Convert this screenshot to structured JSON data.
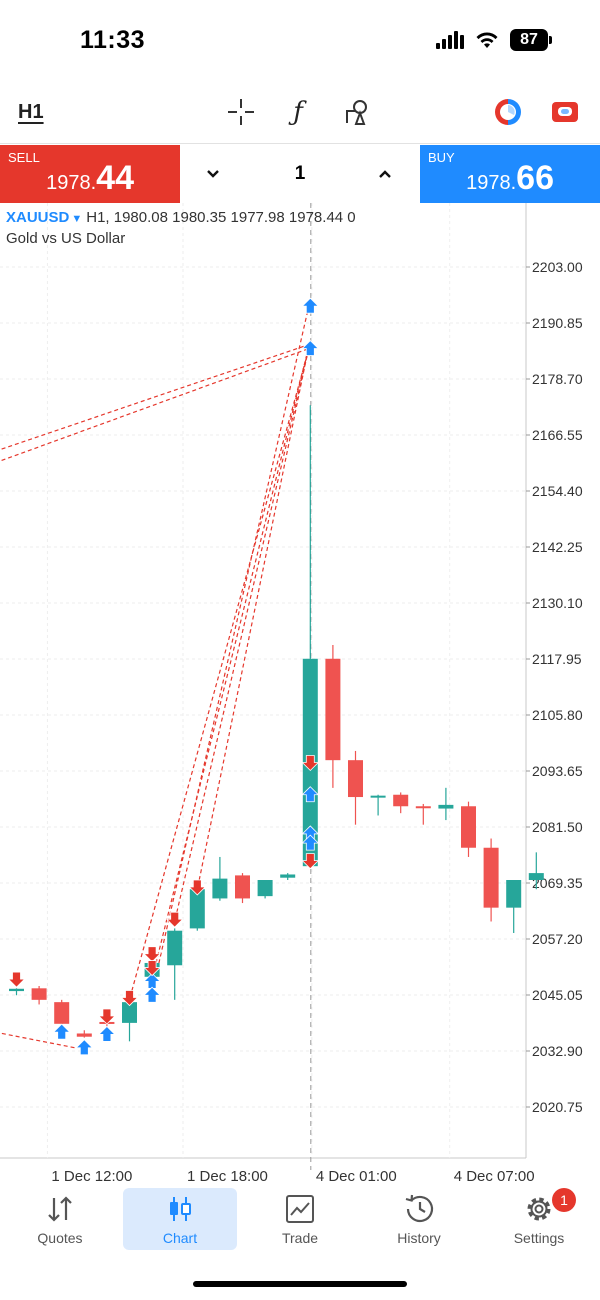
{
  "status_bar": {
    "time": "11:33",
    "battery": "87"
  },
  "toolbar": {
    "timeframe": "H1",
    "icons": [
      "crosshair-icon",
      "function-icon",
      "objects-icon",
      "one-click-trading-icon",
      "account-icon"
    ],
    "function_glyph": "ƒ"
  },
  "trade": {
    "sell_label": "SELL",
    "sell_price_prefix": "1978.",
    "sell_price_big": "44",
    "buy_label": "BUY",
    "buy_price_prefix": "1978.",
    "buy_price_big": "66",
    "lot": "1"
  },
  "chart": {
    "symbol": "XAUUSD",
    "info": "H1, 1980.08 1980.35 1977.98 1978.44 0",
    "description": "Gold vs US Dollar"
  },
  "chart_data": {
    "type": "candlestick",
    "symbol": "XAUUSD",
    "timeframe": "H1",
    "y_ticks": [
      "2203.00",
      "2190.85",
      "2178.70",
      "2166.55",
      "2154.40",
      "2142.25",
      "2130.10",
      "2117.95",
      "2105.80",
      "2093.65",
      "2081.50",
      "2069.35",
      "2057.20",
      "2045.05",
      "2032.90",
      "2020.75"
    ],
    "ylim": [
      2012,
      2206
    ],
    "x_ticks": [
      "1 Dec 12:00",
      "1 Dec 18:00",
      "4 Dec 01:00",
      "4 Dec 07:00"
    ],
    "colors": {
      "bull": "#26a69a",
      "bear": "#ef5350",
      "buy_arrow": "#1f8bff",
      "sell_arrow": "#e5372c"
    },
    "candles": [
      {
        "o": 2045.9,
        "h": 2046.5,
        "l": 2045.0,
        "c": 2046.4
      },
      {
        "o": 2046.5,
        "h": 2047.0,
        "l": 2043.0,
        "c": 2044.0
      },
      {
        "o": 2043.5,
        "h": 2044.0,
        "l": 2037.5,
        "c": 2038.8
      },
      {
        "o": 2036.7,
        "h": 2037.4,
        "l": 2035.8,
        "c": 2036.0
      },
      {
        "o": 2039.2,
        "h": 2040.5,
        "l": 2038.0,
        "c": 2039.0
      },
      {
        "o": 2039.0,
        "h": 2045.5,
        "l": 2035.0,
        "c": 2043.5
      },
      {
        "o": 2049.0,
        "h": 2053.0,
        "l": 2048.0,
        "c": 2052.0
      },
      {
        "o": 2051.5,
        "h": 2059.5,
        "l": 2044.0,
        "c": 2059.0
      },
      {
        "o": 2059.5,
        "h": 2068.5,
        "l": 2059.0,
        "c": 2068.0
      },
      {
        "o": 2066.0,
        "h": 2075.0,
        "l": 2065.5,
        "c": 2070.3
      },
      {
        "o": 2071.0,
        "h": 2071.5,
        "l": 2065.0,
        "c": 2066.0
      },
      {
        "o": 2066.5,
        "h": 2070.0,
        "l": 2066.0,
        "c": 2070.0
      },
      {
        "o": 2070.5,
        "h": 2071.5,
        "l": 2070.0,
        "c": 2071.2
      },
      {
        "o": 2073.0,
        "h": 2173.0,
        "l": 2072.5,
        "c": 2118.0
      },
      {
        "o": 2118.0,
        "h": 2121.0,
        "l": 2090.0,
        "c": 2096.0
      },
      {
        "o": 2096.0,
        "h": 2098.0,
        "l": 2082.0,
        "c": 2088.0
      },
      {
        "o": 2088.0,
        "h": 2088.5,
        "l": 2084.0,
        "c": 2088.3
      },
      {
        "o": 2088.5,
        "h": 2089.0,
        "l": 2084.5,
        "c": 2086.0
      },
      {
        "o": 2086.0,
        "h": 2086.5,
        "l": 2082.0,
        "c": 2085.6
      },
      {
        "o": 2085.5,
        "h": 2090.0,
        "l": 2083.0,
        "c": 2086.3
      },
      {
        "o": 2086.0,
        "h": 2087.0,
        "l": 2075.0,
        "c": 2077.0
      },
      {
        "o": 2077.0,
        "h": 2079.0,
        "l": 2061.0,
        "c": 2064.0
      },
      {
        "o": 2064.0,
        "h": 2070.0,
        "l": 2058.5,
        "c": 2070.0
      },
      {
        "o": 2070.0,
        "h": 2076.0,
        "l": 2068.0,
        "c": 2071.5
      }
    ],
    "buy_arrows": [
      {
        "candle": 2,
        "price": 2037.0
      },
      {
        "candle": 3,
        "price": 2033.6
      },
      {
        "candle": 4,
        "price": 2036.5
      },
      {
        "candle": 6,
        "price": 2048.0
      },
      {
        "candle": 6,
        "price": 2045.0
      },
      {
        "candle": 13,
        "price": 2194.5
      },
      {
        "candle": 13,
        "price": 2185.3
      },
      {
        "candle": 13,
        "price": 2088.5
      },
      {
        "candle": 13,
        "price": 2080.0
      },
      {
        "candle": 13,
        "price": 2078.0
      }
    ],
    "sell_arrows": [
      {
        "candle": 0,
        "price": 2048.5
      },
      {
        "candle": 4,
        "price": 2040.5
      },
      {
        "candle": 5,
        "price": 2044.5
      },
      {
        "candle": 6,
        "price": 2054.0
      },
      {
        "candle": 6,
        "price": 2051.0
      },
      {
        "candle": 7,
        "price": 2061.5
      },
      {
        "candle": 8,
        "price": 2068.5
      },
      {
        "candle": 13,
        "price": 2095.5
      },
      {
        "candle": 13,
        "price": 2074.2
      }
    ],
    "crosshair_candle": 13
  },
  "nav": {
    "items": [
      {
        "label": "Quotes",
        "icon": "quotes-icon"
      },
      {
        "label": "Chart",
        "icon": "chart-icon"
      },
      {
        "label": "Trade",
        "icon": "trade-icon"
      },
      {
        "label": "History",
        "icon": "history-icon"
      },
      {
        "label": "Settings",
        "icon": "settings-icon"
      }
    ],
    "active": "Chart",
    "settings_badge": "1"
  }
}
